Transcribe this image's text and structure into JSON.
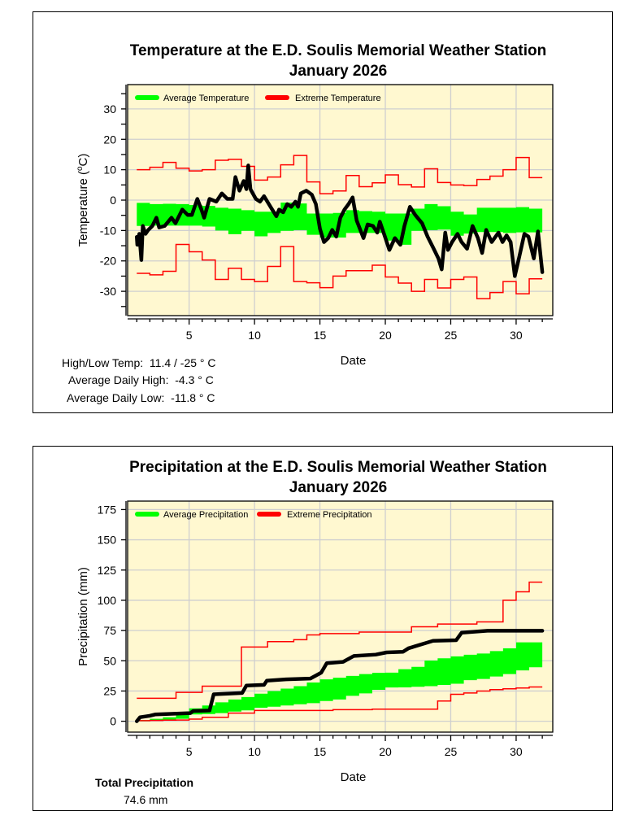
{
  "chart_data": [
    {
      "type": "line",
      "title": "Temperature at the E.D. Soulis Memorial Weather Station",
      "subtitle": "January 2026",
      "xlabel": "Date",
      "ylabel": "Temperature (°C)",
      "ylabel_parts": {
        "pre": "Temperature (",
        "sup": "o",
        "post": "C)"
      },
      "xlim": [
        0.3,
        32.8
      ],
      "ylim": [
        -38,
        38
      ],
      "xticks": [
        5,
        10,
        15,
        20,
        25,
        30
      ],
      "yticks": [
        -30,
        -20,
        -10,
        0,
        10,
        20,
        30
      ],
      "grid": true,
      "legend_position": "top-left",
      "legend": [
        "Average Temperature",
        "Extreme Temperature"
      ],
      "colors": {
        "average": "#00ff00",
        "extreme": "#ff0000",
        "observed": "#000000",
        "background": "#fff8d0"
      },
      "days": [
        1,
        2,
        3,
        4,
        5,
        6,
        7,
        8,
        9,
        10,
        11,
        12,
        13,
        14,
        15,
        16,
        17,
        18,
        19,
        20,
        21,
        22,
        23,
        24,
        25,
        26,
        27,
        28,
        29,
        30,
        31
      ],
      "extreme_high": [
        10,
        10.8,
        12.4,
        10.5,
        9.6,
        10,
        13.1,
        13.4,
        11.1,
        6.6,
        7.6,
        11.6,
        14.7,
        6,
        2.1,
        3,
        8.1,
        4.4,
        5.7,
        8.3,
        5.1,
        4.3,
        10.3,
        5.8,
        5,
        4.8,
        6.8,
        7.9,
        10,
        14,
        7.4
      ],
      "extreme_low": [
        -24.1,
        -24.6,
        -23.4,
        -14.6,
        -17,
        -19.7,
        -26.1,
        -22.4,
        -26.1,
        -26.8,
        -21.8,
        -15.3,
        -26.8,
        -27.2,
        -28.8,
        -25,
        -23.2,
        -23.2,
        -21.4,
        -25.3,
        -27.3,
        -30,
        -26.1,
        -28.9,
        -26.1,
        -25.3,
        -32.4,
        -30.4,
        -26.8,
        -30.8,
        -25.9
      ],
      "average_high": [
        -0.9,
        -1.3,
        -1.2,
        -1.3,
        -1.6,
        -1.9,
        -2.5,
        -2.8,
        -3.3,
        -3.8,
        -3.8,
        -0.8,
        -1.1,
        -4.4,
        -4.4,
        -4.2,
        -3.3,
        -3.6,
        -3.8,
        -4.4,
        -4.4,
        -2.8,
        -1.3,
        -2,
        -3.8,
        -4.7,
        -2.5,
        -2.5,
        -2.5,
        -2.3,
        -2.8
      ],
      "average_low": [
        -8.5,
        -8.4,
        -8.4,
        -8.4,
        -8.4,
        -8.7,
        -10,
        -11.2,
        -10.1,
        -11.9,
        -10.8,
        -10.1,
        -9.9,
        -11.4,
        -12.3,
        -12.3,
        -10.8,
        -10.8,
        -10.8,
        -13.3,
        -14.7,
        -10.1,
        -9.9,
        -9.7,
        -11.7,
        -11,
        -10.5,
        -10.5,
        -10.8,
        -10.6,
        -10.6
      ],
      "observed": {
        "x": [
          1,
          1.04,
          1.19,
          1.35,
          1.46,
          1.67,
          1.88,
          2.19,
          2.5,
          2.71,
          3.13,
          3.65,
          3.96,
          4.48,
          4.9,
          5.21,
          5.63,
          5.94,
          6.15,
          6.56,
          7.08,
          7.5,
          7.92,
          8.33,
          8.54,
          8.85,
          9.17,
          9.38,
          9.52,
          9.69,
          10.1,
          10.42,
          10.73,
          11.04,
          11.35,
          11.67,
          11.88,
          12.19,
          12.5,
          12.81,
          13.13,
          13.33,
          13.54,
          13.96,
          14.38,
          14.69,
          15,
          15.31,
          15.63,
          15.94,
          16.25,
          16.56,
          16.88,
          17.19,
          17.5,
          17.81,
          18.33,
          18.65,
          19.06,
          19.38,
          19.58,
          19.9,
          20.31,
          20.73,
          21.15,
          21.46,
          21.88,
          22.29,
          22.81,
          23.23,
          23.65,
          24.06,
          24.31,
          24.58,
          24.79,
          25.1,
          25.52,
          25.83,
          26.25,
          26.67,
          27.08,
          27.4,
          27.71,
          28.13,
          28.65,
          28.96,
          29.27,
          29.58,
          29.9,
          30.21,
          30.63,
          30.94,
          31.35,
          31.67,
          32
        ],
        "y": [
          -12.1,
          -14.7,
          -11.1,
          -19.7,
          -8.5,
          -11.1,
          -9.8,
          -8.5,
          -5.8,
          -9,
          -8.5,
          -5.8,
          -7.6,
          -3.1,
          -4.9,
          -4.9,
          0.4,
          -3.1,
          -5.8,
          0.4,
          -0.5,
          2.2,
          0.4,
          0.4,
          7.6,
          3.1,
          6.3,
          3.6,
          11.4,
          3.6,
          0.4,
          -0.5,
          1.3,
          -0.9,
          -3.1,
          -5.3,
          -3.1,
          -4,
          -1.3,
          -2.2,
          -0.5,
          -2.2,
          2.2,
          3.1,
          1.8,
          -1.3,
          -9.4,
          -13.8,
          -12.5,
          -9.8,
          -12,
          -5.8,
          -3.1,
          -1.3,
          0.9,
          -6.7,
          -12.5,
          -8,
          -8.5,
          -10.7,
          -7.1,
          -11.1,
          -16.4,
          -12.5,
          -14.7,
          -8.5,
          -2.2,
          -4.9,
          -7.6,
          -12,
          -15.6,
          -19.2,
          -22.8,
          -10.7,
          -16.4,
          -13.8,
          -11.1,
          -13.8,
          -16,
          -8.5,
          -12.5,
          -17.4,
          -9.8,
          -13.8,
          -10.7,
          -13.8,
          -11.6,
          -13.8,
          -25,
          -19.2,
          -11.1,
          -12,
          -19.2,
          -10.3,
          -23.7
        ]
      },
      "stats": [
        {
          "label": "High/Low Temp:",
          "value": "11.4 / -25 ° C"
        },
        {
          "label": "Average Daily High:",
          "value": "-4.3 ° C"
        },
        {
          "label": "Average Daily Low:",
          "value": "-11.8 ° C"
        }
      ]
    },
    {
      "type": "line",
      "title": "Precipitation at the E.D. Soulis Memorial Weather Station",
      "subtitle": "January 2026",
      "xlabel": "Date",
      "ylabel": "Precipitation (mm)",
      "xlim": [
        0.3,
        32.8
      ],
      "ylim": [
        -9,
        182
      ],
      "xticks": [
        5,
        10,
        15,
        20,
        25,
        30
      ],
      "yticks": [
        0,
        25,
        50,
        75,
        100,
        125,
        150,
        175
      ],
      "grid": true,
      "legend_position": "top-left",
      "legend": [
        "Average Precipitation",
        "Extreme Precipitation"
      ],
      "days": [
        1,
        2,
        3,
        4,
        5,
        6,
        7,
        8,
        9,
        10,
        11,
        12,
        13,
        14,
        15,
        16,
        17,
        18,
        19,
        20,
        21,
        22,
        23,
        24,
        25,
        26,
        27,
        28,
        29,
        30,
        31
      ],
      "extreme_high": [
        19,
        19,
        19,
        23.9,
        23.9,
        29,
        29,
        29,
        61.4,
        61.4,
        65.8,
        65.8,
        67.4,
        71.4,
        72.5,
        72.5,
        72.5,
        73.7,
        73.7,
        73.7,
        73.7,
        78.1,
        78.1,
        80.4,
        80.4,
        80.4,
        82.1,
        82.1,
        100,
        107,
        115
      ],
      "extreme_low": [
        0.5,
        0.7,
        0.9,
        1,
        1.8,
        3.3,
        3.3,
        6.7,
        6.7,
        8.9,
        8.9,
        8.9,
        8.9,
        8.9,
        8.9,
        9.6,
        9.6,
        9.6,
        10,
        10,
        10,
        10,
        10,
        16.7,
        22.3,
        23.4,
        25,
        26.1,
        26.8,
        27.5,
        28.3
      ],
      "average_high": [
        1,
        2,
        3.3,
        7,
        10.7,
        13,
        15.6,
        18,
        20,
        22.8,
        25,
        27,
        29,
        32,
        34.6,
        36,
        37.5,
        39,
        40,
        40.2,
        43,
        45,
        50.2,
        52,
        53.6,
        55,
        56,
        58,
        60.3,
        65.2,
        65.2
      ],
      "average_low": [
        0,
        0.5,
        1,
        2,
        5.6,
        6,
        6.7,
        8,
        9,
        11.2,
        12,
        13,
        14,
        15,
        16.7,
        18,
        21,
        23,
        26,
        27.9,
        28,
        28.5,
        29,
        30,
        31,
        34,
        35,
        37,
        39,
        42,
        44.6
      ],
      "observed": {
        "x": [
          1,
          1.25,
          1.98,
          2.4,
          5.1,
          5.31,
          6.56,
          6.88,
          9.06,
          9.38,
          10.73,
          10.94,
          12.4,
          14.27,
          15.1,
          15.52,
          16.77,
          17.6,
          19.27,
          20.1,
          21.35,
          21.77,
          23.65,
          25.42,
          25.83,
          27.81,
          32
        ],
        "y": [
          0,
          3.3,
          4.5,
          5.6,
          6.7,
          8.5,
          8.9,
          22.3,
          23.4,
          29.5,
          30.1,
          33.5,
          34.6,
          35.3,
          40.2,
          48,
          49.1,
          54,
          55.1,
          56.9,
          57.4,
          60.3,
          66.5,
          67,
          73.2,
          74.8,
          74.8
        ]
      },
      "stats": [
        {
          "label": "Total Precipitation",
          "value": "74.6 mm"
        }
      ]
    }
  ]
}
